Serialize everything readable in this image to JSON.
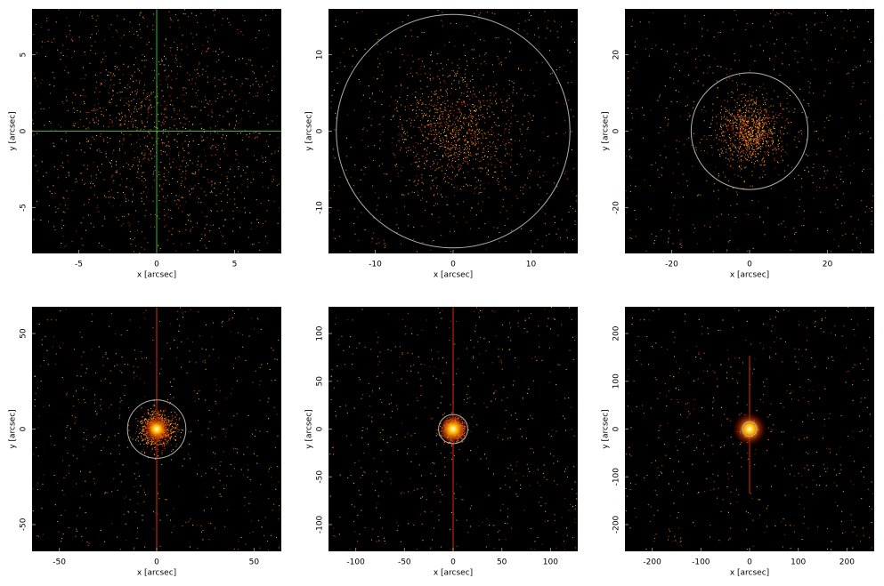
{
  "chart_data": [
    {
      "type": "heatmap",
      "x_label": "x [arcsec]",
      "y_label": "y [arcsec]",
      "xlim": [
        -8,
        8
      ],
      "ylim": [
        -8,
        8
      ],
      "xticks": [
        -5,
        0,
        5
      ],
      "yticks": [
        -5,
        0,
        5
      ],
      "crosshair": {
        "x": 0,
        "y": 0,
        "color": "#22c022"
      }
    },
    {
      "type": "heatmap",
      "x_label": "x [arcsec]",
      "y_label": "y [arcsec]",
      "xlim": [
        -16,
        16
      ],
      "ylim": [
        -16,
        16
      ],
      "xticks": [
        -10,
        0,
        10
      ],
      "yticks": [
        -10,
        0,
        10
      ],
      "circle_radius": 15
    },
    {
      "type": "heatmap",
      "x_label": "x [arcsec]",
      "y_label": "y [arcsec]",
      "xlim": [
        -32,
        32
      ],
      "ylim": [
        -32,
        32
      ],
      "xticks": [
        -20,
        0,
        20
      ],
      "yticks": [
        -20,
        0,
        20
      ],
      "circle_radius": 15
    },
    {
      "type": "heatmap",
      "x_label": "x [arcsec]",
      "y_label": "y [arcsec]",
      "xlim": [
        -64,
        64
      ],
      "ylim": [
        -64,
        64
      ],
      "xticks": [
        -50,
        0,
        50
      ],
      "yticks": [
        -50,
        0,
        50
      ],
      "circle_radius": 15
    },
    {
      "type": "heatmap",
      "x_label": "x [arcsec]",
      "y_label": "y [arcsec]",
      "xlim": [
        -128,
        128
      ],
      "ylim": [
        -128,
        128
      ],
      "xticks": [
        -100,
        -50,
        0,
        50,
        100
      ],
      "yticks": [
        -100,
        -50,
        0,
        50,
        100
      ],
      "circle_radius": 15
    },
    {
      "type": "heatmap",
      "x_label": "x [arcsec]",
      "y_label": "y [arcsec]",
      "xlim": [
        -256,
        256
      ],
      "ylim": [
        -256,
        256
      ],
      "xticks": [
        -200,
        -100,
        0,
        100,
        200
      ],
      "yticks": [
        -200,
        -100,
        0,
        100,
        200
      ],
      "circle_radius": 15
    }
  ]
}
